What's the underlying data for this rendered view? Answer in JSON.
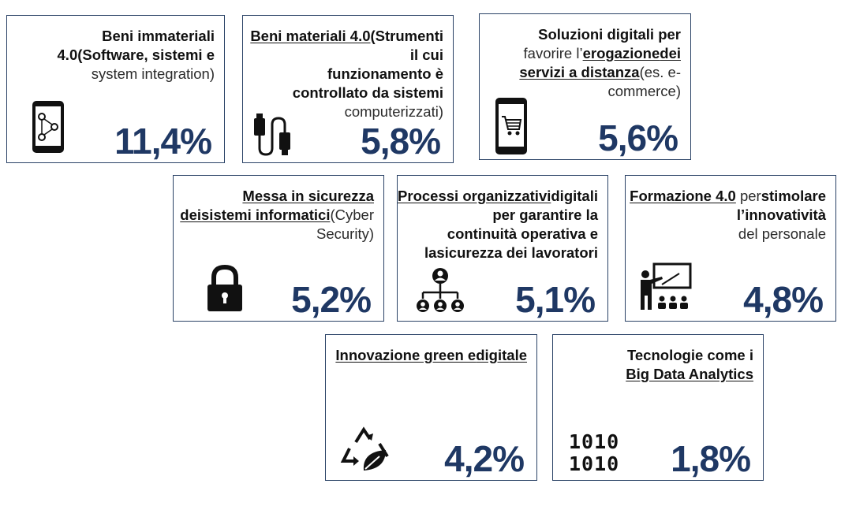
{
  "cards": [
    {
      "id": "beni-immateriali",
      "value": "11,4%",
      "icon": "smartphone-network-icon",
      "segments": [
        {
          "text": "Beni immateriali 4.0",
          "style": "b"
        },
        {
          "text": "(Software, sistemi e",
          "style": "br"
        },
        {
          "text": "system integration)",
          "style": ""
        }
      ]
    },
    {
      "id": "beni-materiali",
      "value": "5,8%",
      "icon": "usb-cable-icon",
      "segments": [
        {
          "text": "Beni materiali 4.0",
          "style": "bu"
        },
        {
          "text": "(Strumenti il cui",
          "style": "br"
        },
        {
          "text": "funzionamento è",
          "style": "br"
        },
        {
          "text": "controllato da sistemi",
          "style": "br"
        },
        {
          "text": "computerizzati)",
          "style": ""
        }
      ]
    },
    {
      "id": "soluzioni-digitali",
      "value": "5,6%",
      "icon": "smartphone-cart-icon",
      "segments": [
        {
          "text": "Soluzioni digitali per",
          "style": "br"
        },
        {
          "text": "favorire l’",
          "style": ""
        },
        {
          "text": "erogazione",
          "style": "bu"
        },
        {
          "text": "dei servizi a distanza",
          "style": "bu"
        },
        {
          "text": "(es. e-commerce)",
          "style": ""
        }
      ]
    },
    {
      "id": "cyber-security",
      "value": "5,2%",
      "icon": "padlock-icon",
      "segments": [
        {
          "text": "Messa in sicurezza dei",
          "style": "bu"
        },
        {
          "text": "sistemi informatici",
          "style": "bu"
        },
        {
          "text": "(Cyber Security)",
          "style": ""
        }
      ]
    },
    {
      "id": "processi-organizzativi",
      "value": "5,1%",
      "icon": "org-chart-icon",
      "segments": [
        {
          "text": "Processi organizzativi",
          "style": "bu"
        },
        {
          "text": "digitali per garantire la",
          "style": "br"
        },
        {
          "text": "continuità operativa e la",
          "style": "b"
        },
        {
          "text": "sicurezza dei lavoratori",
          "style": "b"
        }
      ]
    },
    {
      "id": "formazione",
      "value": "4,8%",
      "icon": "teacher-board-icon",
      "segments": [
        {
          "text": "Formazione 4.0",
          "style": "bu"
        },
        {
          "text": " per",
          "style": ""
        },
        {
          "text": "stimolare l’innovatività",
          "style": "br"
        },
        {
          "text": "del personale",
          "style": ""
        }
      ]
    },
    {
      "id": "innovazione-green",
      "value": "4,2%",
      "icon": "recycle-leaf-icon",
      "segments": [
        {
          "text": "Innovazione green e",
          "style": "bu"
        },
        {
          "text": "digitale",
          "style": "bu"
        }
      ]
    },
    {
      "id": "big-data",
      "value": "1,8%",
      "icon": "binary-code-icon",
      "segments": [
        {
          "text": "Tecnologie come i",
          "style": "br"
        },
        {
          "text": "Big Data Analytics",
          "style": "bu"
        }
      ]
    }
  ],
  "binary_icon": {
    "row1": "1010",
    "row2": "1010"
  }
}
